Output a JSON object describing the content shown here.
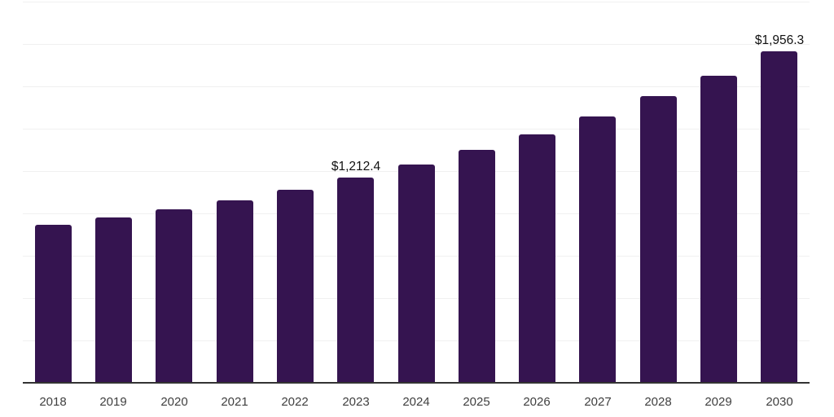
{
  "chart_data": {
    "type": "bar",
    "title": "",
    "xlabel": "",
    "ylabel": "",
    "categories": [
      "2018",
      "2019",
      "2020",
      "2021",
      "2022",
      "2023",
      "2024",
      "2025",
      "2026",
      "2027",
      "2028",
      "2029",
      "2030"
    ],
    "values": [
      935,
      975,
      1026,
      1079,
      1139,
      1212.4,
      1287,
      1376,
      1466,
      1573,
      1691,
      1814,
      1956.3
    ],
    "data_labels": [
      "",
      "",
      "",
      "",
      "",
      "$1,212.4",
      "",
      "",
      "",
      "",
      "",
      "",
      "$1,956.3"
    ],
    "ylim": [
      0,
      2250
    ],
    "gridline_step": 250,
    "grid": "horizontal-only",
    "legend_position": "none",
    "y_tick_labels_visible": false,
    "colors": {
      "bar": "#351450",
      "gridline": "#f0f0f0",
      "axis_line": "#333333",
      "x_tick_label": "#404040",
      "data_label": "#111111",
      "background": "#ffffff"
    }
  }
}
